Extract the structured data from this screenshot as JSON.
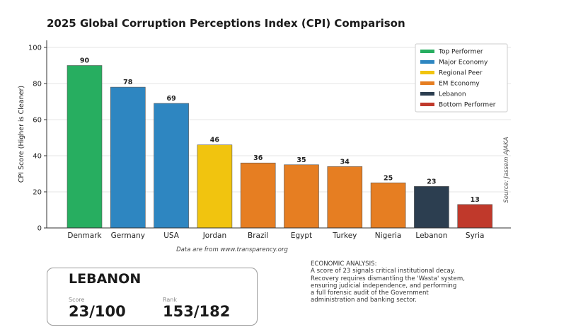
{
  "chart_data": {
    "type": "bar",
    "title": "2025 Global Corruption Perceptions Index (CPI) Comparison",
    "ylabel": "CPI Score (Higher is Cleaner)",
    "xlabel": "",
    "ylim": [
      0,
      100
    ],
    "yticks": [
      0,
      20,
      40,
      60,
      80,
      100
    ],
    "grid": true,
    "categories": [
      "Denmark",
      "Germany",
      "USA",
      "Jordan",
      "Brazil",
      "Egypt",
      "Turkey",
      "Nigeria",
      "Lebanon",
      "Syria"
    ],
    "values": [
      90,
      78,
      69,
      46,
      36,
      35,
      34,
      25,
      23,
      13
    ],
    "groups": [
      "Top Performer",
      "Major Economy",
      "Major Economy",
      "Regional Peer",
      "EM Economy",
      "EM Economy",
      "EM Economy",
      "EM Economy",
      "Lebanon",
      "Bottom Performer"
    ],
    "legend_position": "top-right",
    "legend": [
      {
        "label": "Top Performer",
        "color": "#27ae60"
      },
      {
        "label": "Major Economy",
        "color": "#2e86c1"
      },
      {
        "label": "Regional Peer",
        "color": "#f1c40f"
      },
      {
        "label": "EM Economy",
        "color": "#e67e22"
      },
      {
        "label": "Lebanon",
        "color": "#2c3e50"
      },
      {
        "label": "Bottom Performer",
        "color": "#c0392b"
      }
    ],
    "note": "Data are from www.transparency.org",
    "source": "Source: Jassem AJAKA"
  },
  "card": {
    "country": "LEBANON",
    "score_label": "Score",
    "score_value": "23/100",
    "rank_label": "Rank",
    "rank_value": "153/182"
  },
  "analysis": {
    "heading": "ECONOMIC ANALYSIS:",
    "lines": [
      "A score of 23 signals critical institutional decay.",
      "Recovery requires dismantling the 'Wasta' system,",
      "ensuring judicial independence, and performing",
      "a full forensic audit of the Government",
      "administration and banking sector."
    ]
  }
}
